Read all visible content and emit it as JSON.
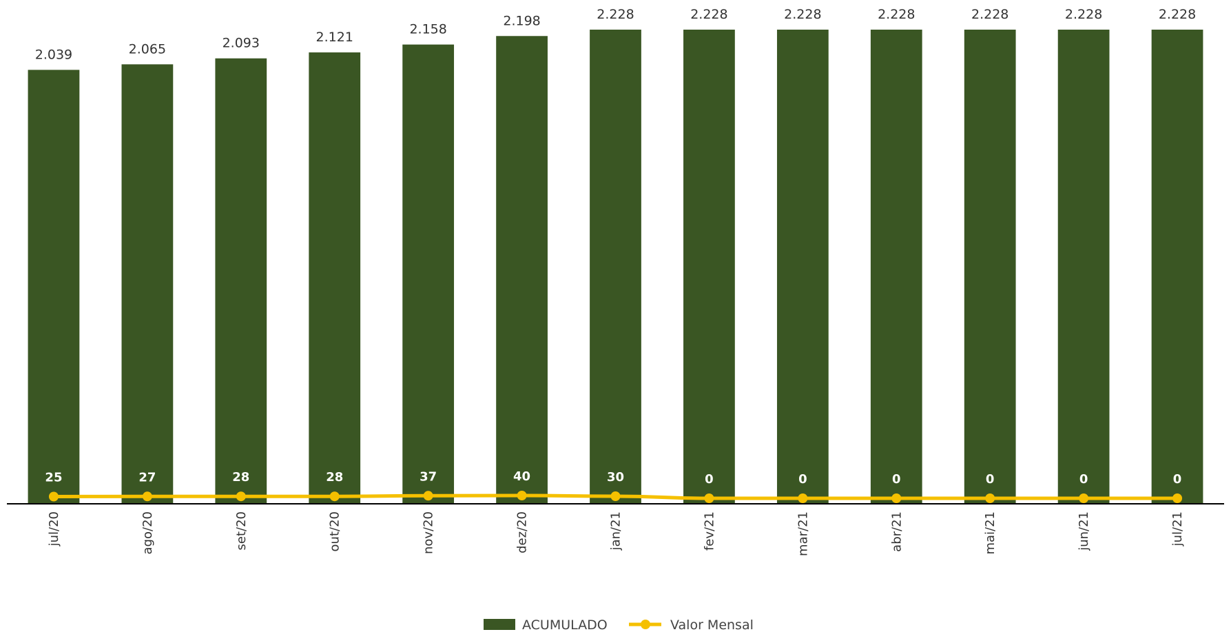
{
  "chart_data": {
    "type": "bar",
    "categories": [
      "jul/20",
      "ago/20",
      "set/20",
      "out/20",
      "nov/20",
      "dez/20",
      "jan/21",
      "fev/21",
      "mar/21",
      "abr/21",
      "mai/21",
      "jun/21",
      "jul/21"
    ],
    "series": [
      {
        "name": "ACUMULADO",
        "type": "bar",
        "color": "#3a5623",
        "values": [
          2039,
          2065,
          2093,
          2121,
          2158,
          2198,
          2228,
          2228,
          2228,
          2228,
          2228,
          2228,
          2228
        ],
        "labels": [
          "2.039",
          "2.065",
          "2.093",
          "2.121",
          "2.158",
          "2.198",
          "2.228",
          "2.228",
          "2.228",
          "2.228",
          "2.228",
          "2.228",
          "2.228"
        ]
      },
      {
        "name": "Valor Mensal",
        "type": "line",
        "color": "#f5c000",
        "values": [
          25,
          27,
          28,
          28,
          37,
          40,
          30,
          0,
          0,
          0,
          0,
          0,
          0
        ],
        "labels": [
          "25",
          "27",
          "28",
          "28",
          "37",
          "40",
          "30",
          "0",
          "0",
          "0",
          "0",
          "0",
          "0"
        ]
      }
    ],
    "title": "",
    "xlabel": "",
    "ylabel": "",
    "ylim": [
      0,
      2228
    ],
    "grid": false,
    "legend": "bottom-center"
  }
}
